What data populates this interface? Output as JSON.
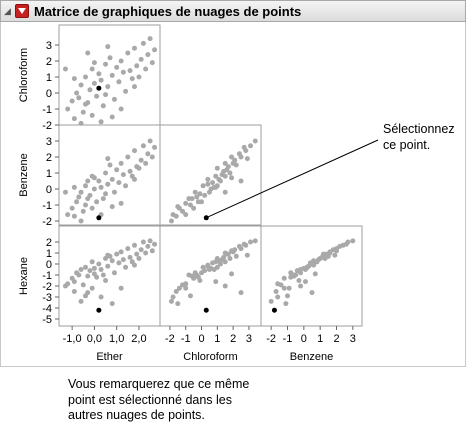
{
  "header": {
    "title": "Matrice de graphiques de nuages de points",
    "disclosure_icon": "triangle-down-icon",
    "menu_icon": "red-triangle-menu-icon",
    "menu_color": "#c62020"
  },
  "colors": {
    "points": "#a9a9a9",
    "selected": "#000000",
    "frame": "#9e9e9e"
  },
  "chart_data": {
    "type": "scatter",
    "variables": [
      "Ether",
      "Chloroform",
      "Benzene",
      "Hexane"
    ],
    "row_labels": [
      "Chloroform",
      "Benzene",
      "Hexane"
    ],
    "column_labels": [
      "Ether",
      "Chloroform",
      "Benzene"
    ],
    "ticks": {
      "Chloroform_y": [
        "3",
        "2",
        "1",
        "0",
        "-1",
        "-2"
      ],
      "Benzene_y": [
        "3",
        "2",
        "1",
        "0",
        "-1",
        "-2"
      ],
      "Hexane_y": [
        "2",
        "1",
        "0",
        "-1",
        "-2",
        "-3",
        "-4",
        "-5"
      ],
      "Ether_x": [
        "-1,0",
        "0,0",
        "1,0",
        "2,0"
      ],
      "Chloroform_x": [
        "-2",
        "-1",
        "0",
        "1",
        "2",
        "3"
      ],
      "Benzene_x": [
        "-2",
        "-1",
        "0",
        "1",
        "2",
        "3"
      ]
    },
    "points": [
      {
        "Ether": 0.2,
        "Chloroform": 0.3,
        "Benzene": -1.8,
        "Hexane": -4.2,
        "selected": true
      },
      {
        "Ether": -1.2,
        "Chloroform": -1.0,
        "Benzene": -1.6,
        "Hexane": -1.8
      },
      {
        "Ether": -1.0,
        "Chloroform": -0.5,
        "Benzene": -1.2,
        "Hexane": -1.3
      },
      {
        "Ether": -0.9,
        "Chloroform": -1.6,
        "Benzene": -1.7,
        "Hexane": -2.5
      },
      {
        "Ether": -0.8,
        "Chloroform": 0.0,
        "Benzene": -0.8,
        "Hexane": -0.8
      },
      {
        "Ether": -0.7,
        "Chloroform": -0.3,
        "Benzene": -0.5,
        "Hexane": -1.0
      },
      {
        "Ether": -0.6,
        "Chloroform": 0.5,
        "Benzene": -0.2,
        "Hexane": -0.5
      },
      {
        "Ether": -0.5,
        "Chloroform": -1.2,
        "Benzene": -1.4,
        "Hexane": -1.9
      },
      {
        "Ether": -0.4,
        "Chloroform": 1.0,
        "Benzene": 0.2,
        "Hexane": -0.3
      },
      {
        "Ether": -0.3,
        "Chloroform": -0.6,
        "Benzene": -0.6,
        "Hexane": -1.1
      },
      {
        "Ether": -0.2,
        "Chloroform": 0.2,
        "Benzene": -0.4,
        "Hexane": -0.6
      },
      {
        "Ether": -0.1,
        "Chloroform": 1.5,
        "Benzene": 0.8,
        "Hexane": 0.2
      },
      {
        "Ether": -0.1,
        "Chloroform": -1.4,
        "Benzene": -1.2,
        "Hexane": -2.2
      },
      {
        "Ether": 0.0,
        "Chloroform": 0.6,
        "Benzene": 0.0,
        "Hexane": -0.4
      },
      {
        "Ether": 0.1,
        "Chloroform": -0.2,
        "Benzene": -0.8,
        "Hexane": -1.2
      },
      {
        "Ether": 0.2,
        "Chloroform": 1.2,
        "Benzene": 0.5,
        "Hexane": 0.0
      },
      {
        "Ether": 0.3,
        "Chloroform": 0.8,
        "Benzene": 0.1,
        "Hexane": -0.5
      },
      {
        "Ether": 0.4,
        "Chloroform": -0.8,
        "Benzene": -0.6,
        "Hexane": -1.0
      },
      {
        "Ether": 0.5,
        "Chloroform": 1.8,
        "Benzene": 1.0,
        "Hexane": 0.5
      },
      {
        "Ether": 0.6,
        "Chloroform": 0.4,
        "Benzene": 0.3,
        "Hexane": -0.2
      },
      {
        "Ether": 0.7,
        "Chloroform": 2.2,
        "Benzene": 1.5,
        "Hexane": 0.7
      },
      {
        "Ether": 0.8,
        "Chloroform": 1.1,
        "Benzene": 0.6,
        "Hexane": 0.3
      },
      {
        "Ether": 0.9,
        "Chloroform": -0.4,
        "Benzene": -0.2,
        "Hexane": -0.8
      },
      {
        "Ether": 1.0,
        "Chloroform": 1.6,
        "Benzene": 1.2,
        "Hexane": 0.9
      },
      {
        "Ether": 1.1,
        "Chloroform": 0.7,
        "Benzene": 0.4,
        "Hexane": 0.1
      },
      {
        "Ether": 1.2,
        "Chloroform": 2.0,
        "Benzene": 1.6,
        "Hexane": 1.1
      },
      {
        "Ether": 1.3,
        "Chloroform": 1.3,
        "Benzene": 0.9,
        "Hexane": 0.4
      },
      {
        "Ether": 1.4,
        "Chloroform": 0.1,
        "Benzene": 0.2,
        "Hexane": -0.3
      },
      {
        "Ether": 1.5,
        "Chloroform": 2.5,
        "Benzene": 2.0,
        "Hexane": 1.4
      },
      {
        "Ether": 1.6,
        "Chloroform": 1.4,
        "Benzene": 1.1,
        "Hexane": 0.6
      },
      {
        "Ether": 1.7,
        "Chloroform": 0.9,
        "Benzene": 0.8,
        "Hexane": 0.2
      },
      {
        "Ether": 1.8,
        "Chloroform": 2.8,
        "Benzene": 2.4,
        "Hexane": 1.7
      },
      {
        "Ether": 1.9,
        "Chloroform": 1.7,
        "Benzene": 1.4,
        "Hexane": 0.9
      },
      {
        "Ether": 2.0,
        "Chloroform": 1.0,
        "Benzene": 1.3,
        "Hexane": 0.5
      },
      {
        "Ether": 2.1,
        "Chloroform": 2.1,
        "Benzene": 1.8,
        "Hexane": 1.3
      },
      {
        "Ether": 2.2,
        "Chloroform": 3.1,
        "Benzene": 2.7,
        "Hexane": 2.0
      },
      {
        "Ether": 2.3,
        "Chloroform": 1.5,
        "Benzene": 1.6,
        "Hexane": 1.0
      },
      {
        "Ether": 2.4,
        "Chloroform": 2.4,
        "Benzene": 2.2,
        "Hexane": 1.6
      },
      {
        "Ether": 2.5,
        "Chloroform": 3.4,
        "Benzene": 3.0,
        "Hexane": 2.1
      },
      {
        "Ether": 2.6,
        "Chloroform": 1.9,
        "Benzene": 2.0,
        "Hexane": 1.2
      },
      {
        "Ether": -1.3,
        "Chloroform": 1.5,
        "Benzene": -0.2,
        "Hexane": -2.0
      },
      {
        "Ether": -0.6,
        "Chloroform": -1.9,
        "Benzene": -2.0,
        "Hexane": -3.4
      },
      {
        "Ether": 0.3,
        "Chloroform": -1.8,
        "Benzene": -1.6,
        "Hexane": -3.0
      },
      {
        "Ether": 0.8,
        "Chloroform": -1.5,
        "Benzene": -1.1,
        "Hexane": -3.6
      },
      {
        "Ether": -0.3,
        "Chloroform": 2.5,
        "Benzene": 0.5,
        "Hexane": -2.6
      },
      {
        "Ether": 1.2,
        "Chloroform": -1.0,
        "Benzene": -0.9,
        "Hexane": -2.2
      },
      {
        "Ether": -0.9,
        "Chloroform": 0.9,
        "Benzene": 0.1,
        "Hexane": -1.6
      },
      {
        "Ether": 0.5,
        "Chloroform": -0.1,
        "Benzene": -0.3,
        "Hexane": -1.5
      },
      {
        "Ether": 1.8,
        "Chloroform": 0.4,
        "Benzene": 0.6,
        "Hexane": -0.1
      },
      {
        "Ether": -0.4,
        "Chloroform": -0.7,
        "Benzene": -1.0,
        "Hexane": -2.9
      },
      {
        "Ether": 0.6,
        "Chloroform": 2.9,
        "Benzene": 1.9,
        "Hexane": 0.8
      },
      {
        "Ether": 2.7,
        "Chloroform": 2.7,
        "Benzene": 2.6,
        "Hexane": 1.8
      },
      {
        "Ether": 0.0,
        "Chloroform": 1.9,
        "Benzene": 0.7,
        "Hexane": -0.9
      }
    ]
  },
  "callout": {
    "text": "Sélectionnez\nce point."
  },
  "note": {
    "text": "Vous remarquerez que ce même\npoint est sélectionné dans les\nautres nuages de points."
  }
}
